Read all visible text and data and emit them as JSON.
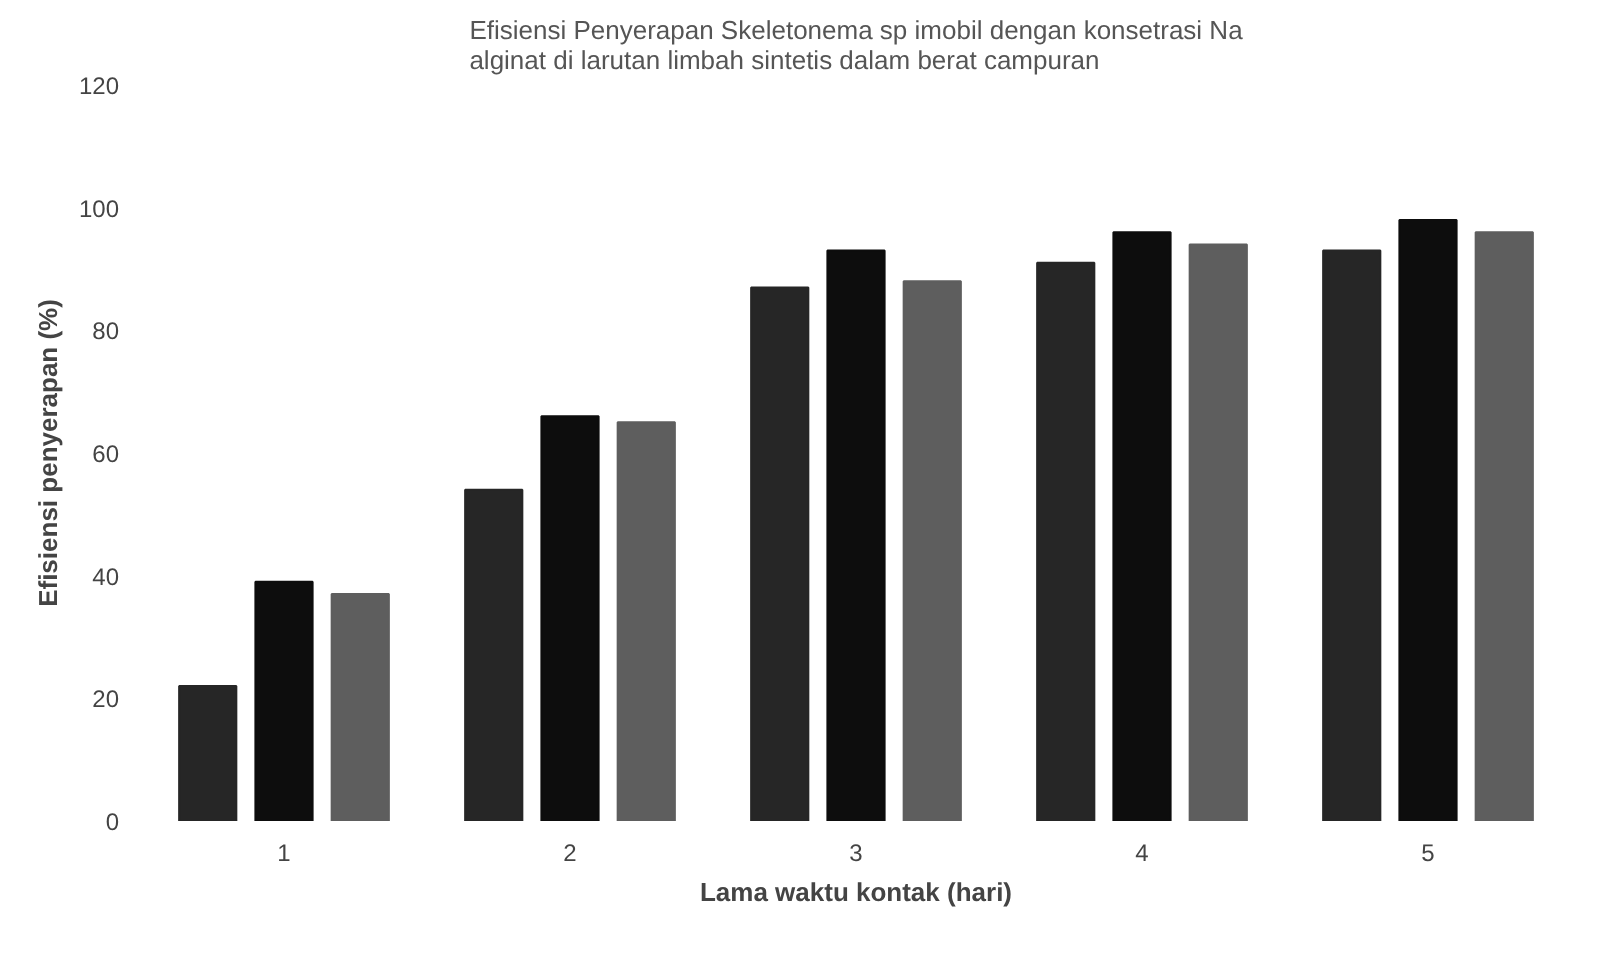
{
  "chart_data": {
    "type": "bar",
    "title": "Efisiensi Penyerapan Skeletonema sp imobil dengan konsetrasi Na\nalginat di larutan limbah sintetis dalam berat campuran",
    "xlabel": "Lama waktu kontak (hari)",
    "ylabel": "Efisiensi penyerapan (%)",
    "categories": [
      "1",
      "2",
      "3",
      "4",
      "5"
    ],
    "series": [
      {
        "color": "#262626",
        "values": [
          22,
          54,
          87,
          91,
          93
        ]
      },
      {
        "color": "#0d0d0d",
        "values": [
          39,
          66,
          93,
          96,
          98
        ]
      },
      {
        "color": "#5e5e5e",
        "values": [
          37,
          65,
          88,
          94,
          96
        ]
      }
    ],
    "ylim": [
      0,
      120
    ],
    "yticks": [
      0,
      20,
      40,
      60,
      80,
      100,
      120
    ],
    "grid": false
  }
}
